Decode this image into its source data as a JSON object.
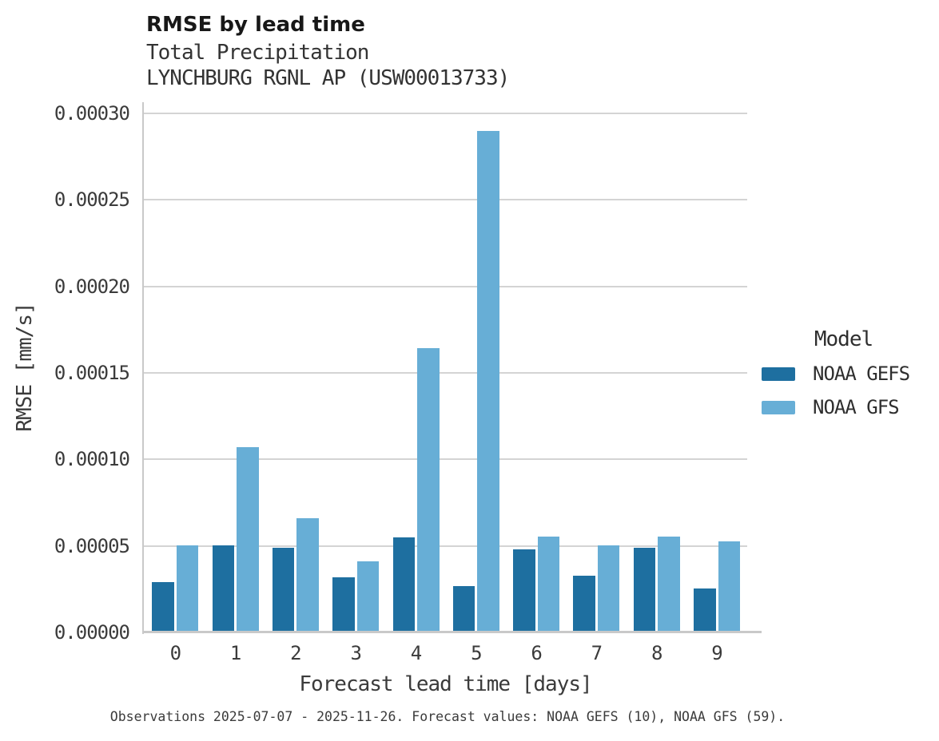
{
  "header": {
    "title": "RMSE by lead time",
    "subtitle_variable": "Total Precipitation",
    "subtitle_station": "LYNCHBURG RGNL AP (USW00013733)"
  },
  "caption": "Observations 2025-07-07 - 2025-11-26. Forecast values: NOAA GEFS (10), NOAA GFS (59).",
  "legend": {
    "title": "Model",
    "entries": [
      {
        "label": "NOAA GEFS",
        "color": "#1e6fa0"
      },
      {
        "label": "NOAA GFS",
        "color": "#67aed6"
      }
    ]
  },
  "colors": {
    "gefs_bar": "#1e6fa0",
    "gfs_bar": "#67aed6",
    "gridline": "#d4d4d4",
    "axis": "#c9c9c9",
    "text": "#3b3b3b"
  },
  "chart_data": {
    "type": "bar",
    "title": "RMSE by lead time",
    "subtitle": [
      "Total Precipitation",
      "LYNCHBURG RGNL AP (USW00013733)"
    ],
    "xlabel": "Forecast lead time [days]",
    "ylabel": "RMSE [mm/s]",
    "categories": [
      "0",
      "1",
      "2",
      "3",
      "4",
      "5",
      "6",
      "7",
      "8",
      "9"
    ],
    "series": [
      {
        "name": "NOAA GEFS",
        "color": "#1e6fa0",
        "values": [
          2.9e-05,
          5.05e-05,
          4.88e-05,
          3.18e-05,
          5.48e-05,
          2.67e-05,
          4.79e-05,
          3.27e-05,
          4.88e-05,
          2.53e-05
        ]
      },
      {
        "name": "NOAA GFS",
        "color": "#67aed6",
        "values": [
          5.05e-05,
          0.0001073,
          6.58e-05,
          4.1e-05,
          0.0001644,
          0.00029,
          5.52e-05,
          5.05e-05,
          5.52e-05,
          5.25e-05
        ]
      }
    ],
    "ylim": [
      0,
      0.0003
    ],
    "yticks": [
      0,
      5e-05,
      0.0001,
      0.00015,
      0.0002,
      0.00025,
      0.0003
    ],
    "ytick_labels": [
      "0.00000",
      "0.00005",
      "0.00010",
      "0.00015",
      "0.00020",
      "0.00025",
      "0.00030"
    ],
    "grid": true,
    "legend_position": "right",
    "legend_title": "Model"
  }
}
